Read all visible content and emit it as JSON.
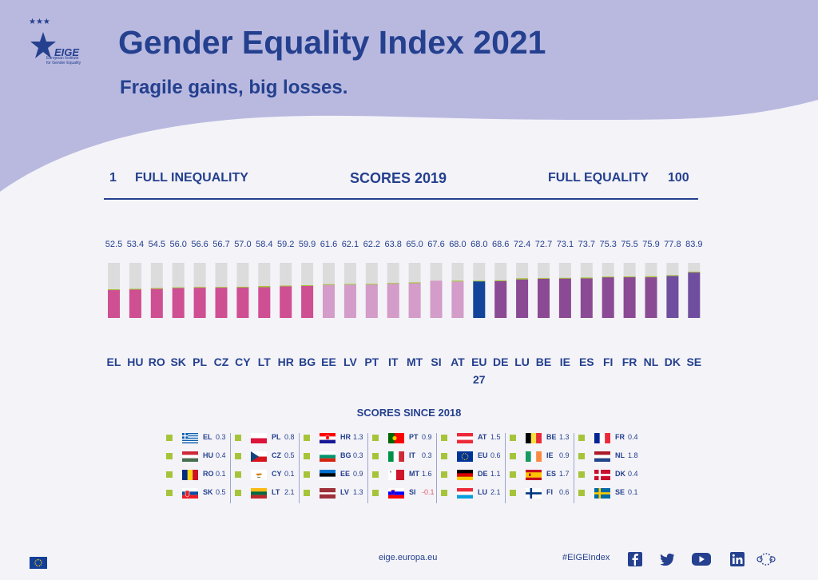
{
  "header": {
    "title": "Gender Equality Index 2021",
    "subtitle": "Fragile gains, big losses.",
    "logo_text": "EIGE",
    "logo_caption_1": "European Institute",
    "logo_caption_2": "for Gender Equality"
  },
  "scale": {
    "min": "1",
    "min_label": "FULL INEQUALITY",
    "center_label": "SCORES 2019",
    "max_label": "FULL EQUALITY",
    "max": "100"
  },
  "chart_data": {
    "type": "bar",
    "title": "SCORES 2019",
    "categories": [
      "EL",
      "HU",
      "RO",
      "SK",
      "PL",
      "CZ",
      "CY",
      "LT",
      "HR",
      "BG",
      "EE",
      "LV",
      "PT",
      "IT",
      "MT",
      "SI",
      "AT",
      "EU 27",
      "DE",
      "LU",
      "BE",
      "IE",
      "ES",
      "FI",
      "FR",
      "NL",
      "DK",
      "SE"
    ],
    "values": [
      52.5,
      53.4,
      54.5,
      56.0,
      56.6,
      56.7,
      57.0,
      58.4,
      59.2,
      59.9,
      61.6,
      62.1,
      62.2,
      63.8,
      65.0,
      67.6,
      68.0,
      68.0,
      68.6,
      72.4,
      72.7,
      73.1,
      73.7,
      75.3,
      75.5,
      75.9,
      77.8,
      83.9
    ],
    "change_since_2018": [
      0.3,
      0.4,
      0.1,
      0.5,
      0.8,
      0.5,
      0.1,
      2.1,
      1.3,
      0.3,
      0.9,
      1.3,
      0.9,
      0.3,
      1.6,
      -0.1,
      1.5,
      0.6,
      1.1,
      2.1,
      1.3,
      0.9,
      1.7,
      0.6,
      0.4,
      1.8,
      0.4,
      0.1
    ],
    "ylim": [
      1,
      100
    ],
    "colors": {
      "background": "#dcdcdc",
      "gain": "#a6c43a",
      "loss": "#e0394f",
      "eu": "#14449a",
      "group": [
        "#cf4f93",
        "#cf4f93",
        "#cf4f93",
        "#cf4f93",
        "#cf4f93",
        "#cf4f93",
        "#cf4f93",
        "#cf4f93",
        "#cf4f93",
        "#cf4f93",
        "#d39cc9",
        "#d39cc9",
        "#d39cc9",
        "#d39cc9",
        "#d39cc9",
        "#d39cc9",
        "#d39cc9",
        "#14449a",
        "#8b4a94",
        "#8b4a94",
        "#8b4a94",
        "#8b4a94",
        "#8b4a94",
        "#8b4a94",
        "#8b4a94",
        "#8b4a94",
        "#6f4e9f",
        "#6f4e9f"
      ]
    }
  },
  "changes": {
    "title": "SCORES SINCE 2018",
    "columns": [
      [
        {
          "code": "EL",
          "value": "0.3",
          "flag": "greece-flag"
        },
        {
          "code": "HU",
          "value": "0.4",
          "flag": "hungary-flag"
        },
        {
          "code": "RO",
          "value": "0.1",
          "flag": "romania-flag"
        },
        {
          "code": "SK",
          "value": "0.5",
          "flag": "slovakia-flag"
        }
      ],
      [
        {
          "code": "PL",
          "value": "0.8",
          "flag": "poland-flag"
        },
        {
          "code": "CZ",
          "value": "0.5",
          "flag": "czechia-flag"
        },
        {
          "code": "CY",
          "value": "0.1",
          "flag": "cyprus-flag"
        },
        {
          "code": "LT",
          "value": "2.1",
          "flag": "lithuania-flag"
        }
      ],
      [
        {
          "code": "HR",
          "value": "1.3",
          "flag": "croatia-flag"
        },
        {
          "code": "BG",
          "value": "0.3",
          "flag": "bulgaria-flag"
        },
        {
          "code": "EE",
          "value": "0.9",
          "flag": "estonia-flag"
        },
        {
          "code": "LV",
          "value": "1.3",
          "flag": "latvia-flag"
        }
      ],
      [
        {
          "code": "PT",
          "value": "0.9",
          "flag": "portugal-flag"
        },
        {
          "code": "IT",
          "value": "0.3",
          "flag": "italy-flag"
        },
        {
          "code": "MT",
          "value": "1.6",
          "flag": "malta-flag"
        },
        {
          "code": "SI",
          "value": "-0.1",
          "flag": "slovenia-flag"
        }
      ],
      [
        {
          "code": "AT",
          "value": "1.5",
          "flag": "austria-flag"
        },
        {
          "code": "EU",
          "value": "0.6",
          "flag": "eu-flag"
        },
        {
          "code": "DE",
          "value": "1.1",
          "flag": "germany-flag"
        },
        {
          "code": "LU",
          "value": "2.1",
          "flag": "luxembourg-flag"
        }
      ],
      [
        {
          "code": "BE",
          "value": "1.3",
          "flag": "belgium-flag"
        },
        {
          "code": "IE",
          "value": "0.9",
          "flag": "ireland-flag"
        },
        {
          "code": "ES",
          "value": "1.7",
          "flag": "spain-flag"
        },
        {
          "code": "FI",
          "value": "0.6",
          "flag": "finland-flag"
        }
      ],
      [
        {
          "code": "FR",
          "value": "0.4",
          "flag": "france-flag"
        },
        {
          "code": "NL",
          "value": "1.8",
          "flag": "netherlands-flag"
        },
        {
          "code": "DK",
          "value": "0.4",
          "flag": "denmark-flag"
        },
        {
          "code": "SE",
          "value": "0.1",
          "flag": "sweden-flag"
        }
      ]
    ]
  },
  "footer": {
    "website": "eige.europa.eu",
    "hashtag": "#EIGEIndex",
    "social_icons": [
      "facebook-icon",
      "twitter-icon",
      "youtube-icon",
      "linkedin-icon",
      "eu-stars-icon"
    ]
  }
}
